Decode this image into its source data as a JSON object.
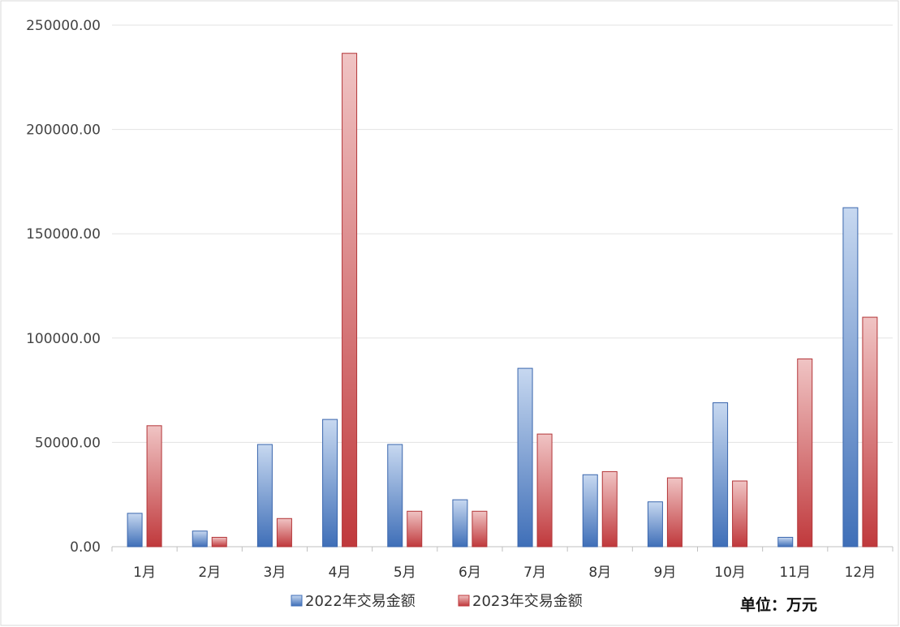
{
  "chart_data": {
    "type": "bar",
    "categories": [
      "1月",
      "2月",
      "3月",
      "4月",
      "5月",
      "6月",
      "7月",
      "8月",
      "9月",
      "10月",
      "11月",
      "12月"
    ],
    "series": [
      {
        "name": "2022年交易金额",
        "color": "#4f7fc4",
        "values": [
          16000,
          7500,
          49000,
          61000,
          49000,
          22500,
          85500,
          34500,
          21500,
          69000,
          4500,
          162500
        ]
      },
      {
        "name": "2023年交易金额",
        "color": "#c9484b",
        "values": [
          58000,
          4500,
          13500,
          236500,
          17000,
          17000,
          54000,
          36000,
          33000,
          31500,
          90000,
          110000
        ]
      }
    ],
    "yticks": [
      "0.00",
      "50000.00",
      "100000.00",
      "150000.00",
      "200000.00",
      "250000.00"
    ],
    "ylim": [
      0,
      250000
    ],
    "grid": true,
    "legend": "bottom-center",
    "unit_label": "单位：万元"
  }
}
